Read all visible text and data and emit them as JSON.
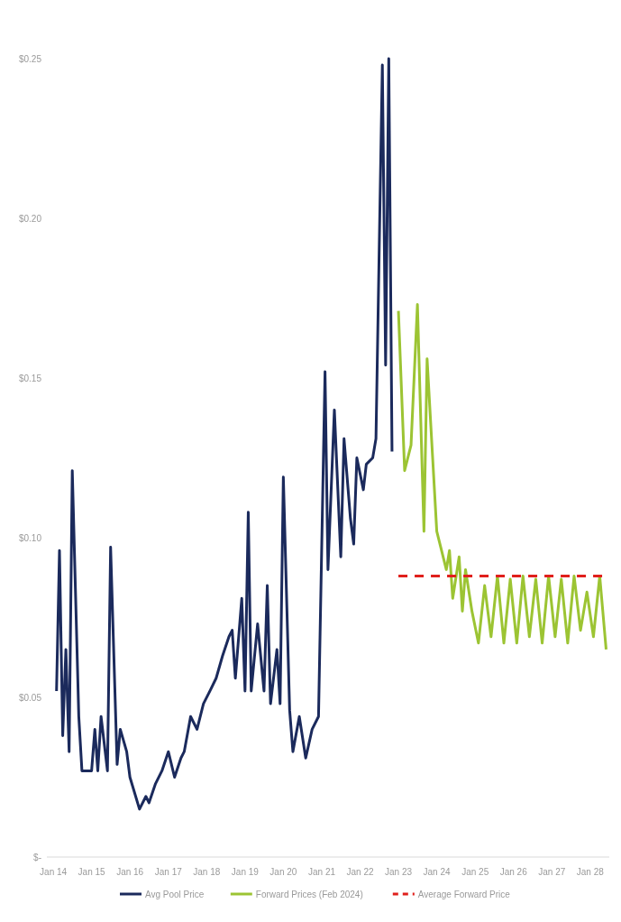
{
  "chart_data": {
    "type": "line",
    "xlim": [
      "2013-11",
      "2028-07"
    ],
    "ylim": [
      0,
      0.25
    ],
    "xticks": [
      {
        "value": "2014-01",
        "label": "Jan 14"
      },
      {
        "value": "2015-01",
        "label": "Jan 15"
      },
      {
        "value": "2016-01",
        "label": "Jan 16"
      },
      {
        "value": "2017-01",
        "label": "Jan 17"
      },
      {
        "value": "2018-01",
        "label": "Jan 18"
      },
      {
        "value": "2019-01",
        "label": "Jan 19"
      },
      {
        "value": "2020-01",
        "label": "Jan 20"
      },
      {
        "value": "2021-01",
        "label": "Jan 21"
      },
      {
        "value": "2022-01",
        "label": "Jan 22"
      },
      {
        "value": "2023-01",
        "label": "Jan 23"
      },
      {
        "value": "2024-01",
        "label": "Jan 24"
      },
      {
        "value": "2025-01",
        "label": "Jan 25"
      },
      {
        "value": "2026-01",
        "label": "Jan 26"
      },
      {
        "value": "2027-01",
        "label": "Jan 27"
      },
      {
        "value": "2028-01",
        "label": "Jan 28"
      }
    ],
    "yticks": [
      {
        "value": 0,
        "label": "$-"
      },
      {
        "value": 0.05,
        "label": "$0.05"
      },
      {
        "value": 0.1,
        "label": "$0.10"
      },
      {
        "value": 0.15,
        "label": "$0.15"
      },
      {
        "value": 0.2,
        "label": "$0.20"
      },
      {
        "value": 0.25,
        "label": "$0.25"
      }
    ],
    "legend": "bottom",
    "series": [
      {
        "name": "Avg Pool Price",
        "color": "#1b2a5c",
        "line_style": "solid",
        "x": [
          "2014-02",
          "2014-03",
          "2014-04",
          "2014-05",
          "2014-06",
          "2014-07",
          "2014-09",
          "2014-10",
          "2015-01",
          "2015-02",
          "2015-03",
          "2015-04",
          "2015-06",
          "2015-07",
          "2015-09",
          "2015-10",
          "2015-12",
          "2016-01",
          "2016-04",
          "2016-06",
          "2016-07",
          "2016-09",
          "2016-11",
          "2017-01",
          "2017-03",
          "2017-05",
          "2017-06",
          "2017-08",
          "2017-10",
          "2017-12",
          "2018-02",
          "2018-04",
          "2018-06",
          "2018-08",
          "2018-09",
          "2018-10",
          "2018-12",
          "2019-01",
          "2019-02",
          "2019-03",
          "2019-05",
          "2019-07",
          "2019-08",
          "2019-09",
          "2019-11",
          "2019-12",
          "2020-01",
          "2020-03",
          "2020-04",
          "2020-06",
          "2020-08",
          "2020-10",
          "2020-12",
          "2021-02",
          "2021-03",
          "2021-05",
          "2021-07",
          "2021-08",
          "2021-10",
          "2021-11",
          "2021-12",
          "2022-02",
          "2022-03",
          "2022-05",
          "2022-06",
          "2022-08",
          "2022-09",
          "2022-10",
          "2022-11"
        ],
        "values": [
          0.052,
          0.096,
          0.038,
          0.065,
          0.033,
          0.121,
          0.044,
          0.027,
          0.027,
          0.04,
          0.027,
          0.044,
          0.027,
          0.097,
          0.029,
          0.04,
          0.033,
          0.025,
          0.015,
          0.019,
          0.017,
          0.023,
          0.027,
          0.033,
          0.025,
          0.031,
          0.033,
          0.044,
          0.04,
          0.048,
          0.052,
          0.056,
          0.063,
          0.069,
          0.071,
          0.056,
          0.081,
          0.052,
          0.108,
          0.052,
          0.073,
          0.052,
          0.085,
          0.048,
          0.065,
          0.048,
          0.119,
          0.046,
          0.033,
          0.044,
          0.031,
          0.04,
          0.044,
          0.152,
          0.09,
          0.14,
          0.094,
          0.131,
          0.106,
          0.098,
          0.125,
          0.115,
          0.123,
          0.125,
          0.131,
          0.248,
          0.154,
          0.25,
          0.127
        ]
      },
      {
        "name": "Forward Prices (Feb 2024)",
        "color": "#9cc433",
        "line_style": "solid",
        "x": [
          "2023-01",
          "2023-03",
          "2023-05",
          "2023-07",
          "2023-09",
          "2023-10",
          "2024-01",
          "2024-04",
          "2024-05",
          "2024-06",
          "2024-08",
          "2024-09",
          "2024-10",
          "2024-12",
          "2025-02",
          "2025-04",
          "2025-06",
          "2025-08",
          "2025-10",
          "2025-12",
          "2026-02",
          "2026-04",
          "2026-06",
          "2026-08",
          "2026-10",
          "2026-12",
          "2027-02",
          "2027-04",
          "2027-06",
          "2027-08",
          "2027-10",
          "2027-12",
          "2028-02",
          "2028-04",
          "2028-06"
        ],
        "values": [
          0.171,
          0.121,
          0.129,
          0.173,
          0.102,
          0.156,
          0.102,
          0.09,
          0.096,
          0.081,
          0.094,
          0.077,
          0.09,
          0.077,
          0.067,
          0.085,
          0.069,
          0.088,
          0.067,
          0.087,
          0.067,
          0.088,
          0.069,
          0.087,
          0.067,
          0.088,
          0.069,
          0.087,
          0.067,
          0.088,
          0.071,
          0.083,
          0.069,
          0.088,
          0.065
        ]
      },
      {
        "name": "Average Forward Price",
        "color": "#e0201c",
        "line_style": "dashed",
        "x": [
          "2023-01",
          "2028-06"
        ],
        "values": [
          0.088,
          0.088
        ]
      }
    ]
  }
}
